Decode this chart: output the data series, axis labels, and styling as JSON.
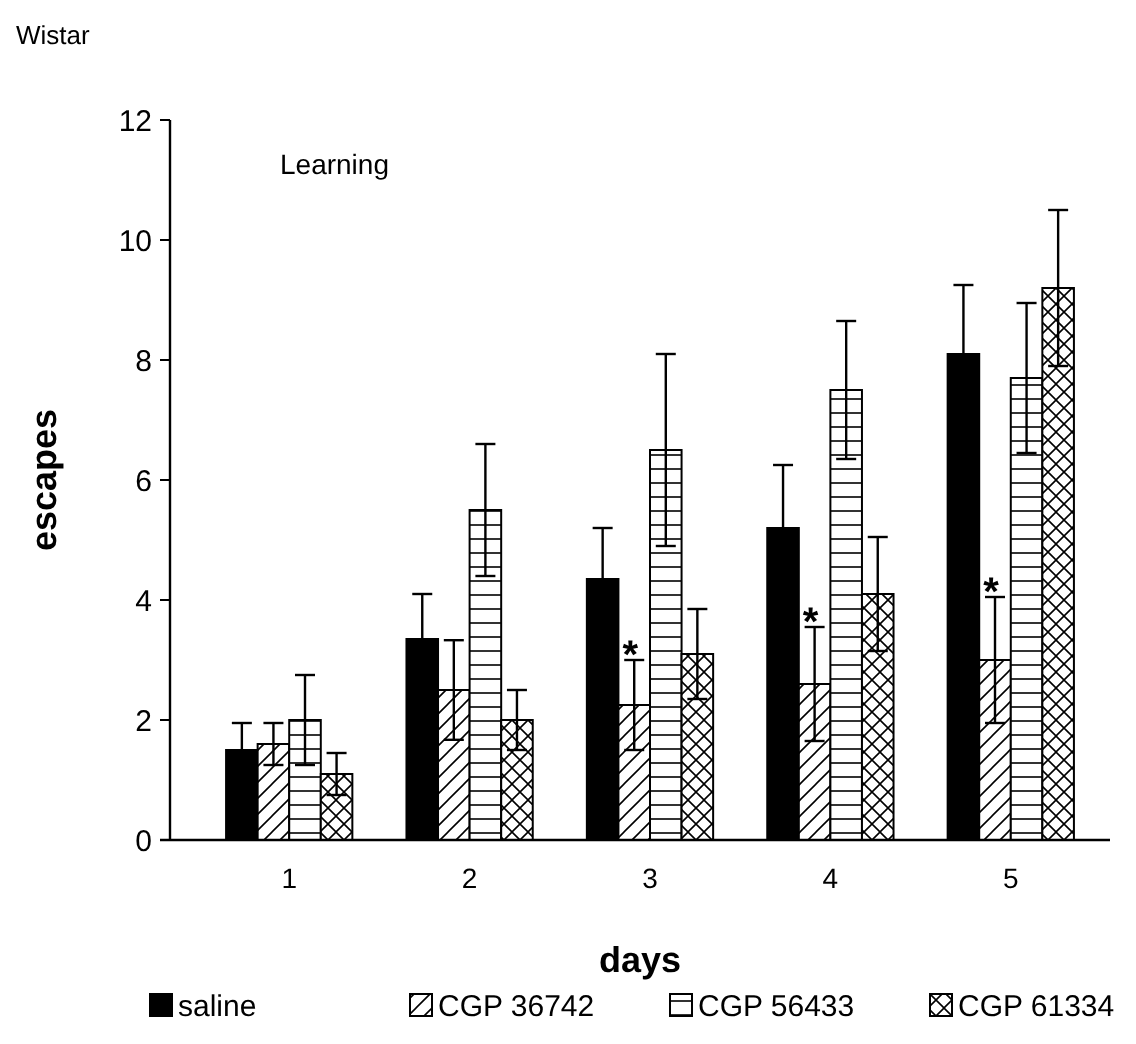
{
  "chart_data": {
    "type": "bar",
    "title": "Wistar",
    "xlabel": "days",
    "ylabel": "escapes",
    "categories": [
      "1",
      "2",
      "3",
      "4",
      "5"
    ],
    "series": [
      {
        "name": "saline",
        "color": "#000000",
        "values": [
          1.5,
          3.35,
          4.35,
          5.2,
          8.1
        ],
        "errors": [
          0.45,
          0.75,
          0.85,
          1.05,
          1.15
        ]
      },
      {
        "name": "CGP 36742",
        "color": "#000000",
        "values": [
          1.6,
          2.5,
          2.25,
          2.6,
          3.0
        ],
        "errors": [
          0.35,
          0.83,
          0.75,
          0.95,
          1.05
        ]
      },
      {
        "name": "CGP 56433",
        "color": "#000000",
        "values": [
          2.0,
          5.5,
          6.5,
          7.5,
          7.7
        ],
        "errors": [
          0.75,
          1.1,
          1.6,
          1.15,
          1.25
        ]
      },
      {
        "name": "CGP 61334",
        "color": "#000000",
        "values": [
          1.1,
          2.0,
          3.1,
          4.1,
          9.2
        ],
        "errors": [
          0.35,
          0.5,
          0.75,
          0.95,
          1.3
        ]
      }
    ],
    "ylim": [
      0,
      12
    ],
    "yticks": [
      0,
      2,
      4,
      6,
      8,
      10,
      12
    ],
    "grid": false,
    "legend": "bottom",
    "annotations": [
      "Learning",
      {
        "text": "*",
        "x": "3",
        "y": 3.0
      },
      {
        "text": "*",
        "x": "4",
        "y": 3.55
      },
      {
        "text": "*",
        "x": "5",
        "y": 4.05
      }
    ]
  }
}
